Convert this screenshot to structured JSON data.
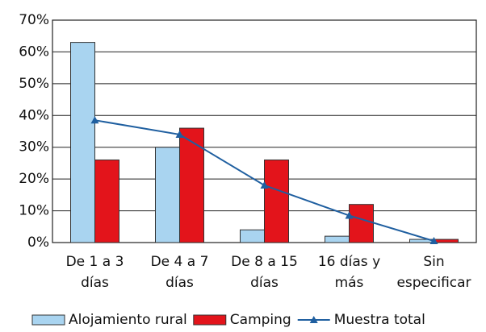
{
  "chart_data": {
    "type": "bar",
    "categories": [
      "De 1 a 3\ndías",
      "De 4 a 7\ndías",
      "De 8 a 15\ndías",
      "16 días y\nmás",
      "Sin\nespecificar"
    ],
    "series": [
      {
        "name": "Alojamiento rural",
        "color": "#a9d4f0",
        "values": [
          63,
          30,
          4,
          2,
          1
        ]
      },
      {
        "name": "Camping",
        "color": "#e3141b",
        "values": [
          26,
          36,
          26,
          12,
          1
        ]
      },
      {
        "name": "Muestra total",
        "color": "#1f5fa0",
        "type": "line",
        "values": [
          38.5,
          34,
          18,
          8.5,
          0.5
        ]
      }
    ],
    "ylim": [
      0,
      70
    ],
    "yticks": [
      {
        "value": 0,
        "label": "0%"
      },
      {
        "value": 10,
        "label": "10%"
      },
      {
        "value": 20,
        "label": "20%"
      },
      {
        "value": 30,
        "label": "30%"
      },
      {
        "value": 40,
        "label": "40%"
      },
      {
        "value": 50,
        "label": "50%"
      },
      {
        "value": 60,
        "label": "60%"
      },
      {
        "value": 70,
        "label": "70%"
      }
    ],
    "grid": true,
    "legend": "bottom"
  }
}
